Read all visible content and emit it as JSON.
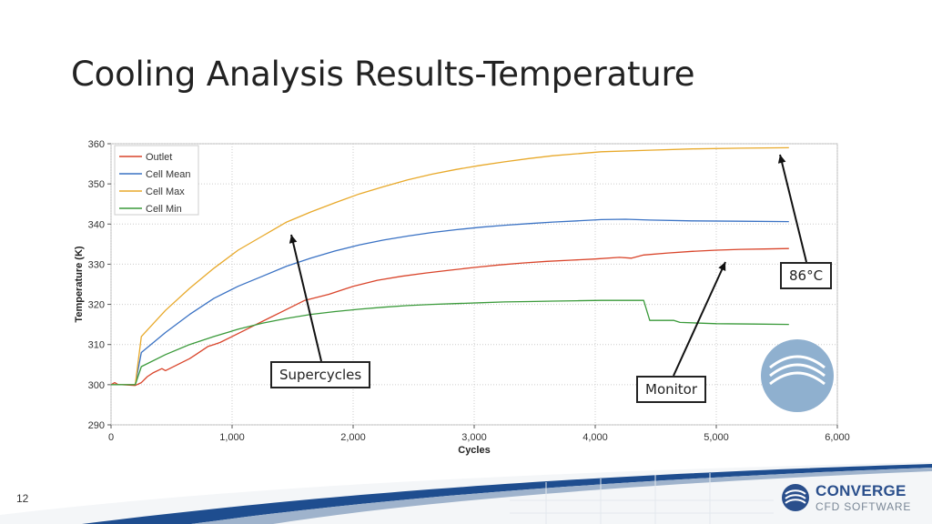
{
  "slide": {
    "title": "Cooling Analysis Results-Temperature",
    "page_number": "12"
  },
  "callouts": {
    "supercycles": "Supercycles",
    "monitor": "Monitor",
    "max_temp": "86°C"
  },
  "logo": {
    "word": "CONVERGE",
    "sub": "CFD SOFTWARE"
  },
  "colors": {
    "outlet": "#d9442a",
    "cell_mean": "#3a72c4",
    "cell_max": "#e8a92a",
    "cell_min": "#3a9a3a",
    "brand": "#2a4f8c"
  },
  "chart_data": {
    "type": "line",
    "xlabel": "Cycles",
    "ylabel": "Temperature (K)",
    "xlim": [
      0,
      6000
    ],
    "ylim": [
      290,
      360
    ],
    "x_ticks": [
      0,
      1000,
      2000,
      3000,
      4000,
      5000,
      6000
    ],
    "x_tick_labels": [
      "0",
      "1,000",
      "2,000",
      "3,000",
      "4,000",
      "5,000",
      "6,000"
    ],
    "y_ticks": [
      290,
      300,
      310,
      320,
      330,
      340,
      350,
      360
    ],
    "y_tick_labels": [
      "290",
      "300",
      "310",
      "320",
      "330",
      "340",
      "350",
      "360"
    ],
    "grid": "dotted",
    "legend_position": "top-left",
    "series": [
      {
        "name": "Outlet",
        "color_key": "outlet",
        "x": [
          0,
          30,
          60,
          90,
          200,
          250,
          300,
          350,
          420,
          450,
          550,
          650,
          700,
          800,
          850,
          900,
          1000,
          1100,
          1200,
          1300,
          1400,
          1500,
          1600,
          1800,
          2000,
          2200,
          2400,
          2600,
          2800,
          3000,
          3200,
          3400,
          3600,
          3800,
          4000,
          4200,
          4300,
          4400,
          4600,
          4800,
          5000,
          5200,
          5400,
          5600
        ],
        "y": [
          300,
          300.5,
          300,
          300,
          299.8,
          300.5,
          302,
          303,
          304,
          303.5,
          305,
          306.5,
          307.5,
          309.5,
          310,
          310.5,
          312,
          313.5,
          315,
          316.5,
          318,
          319.5,
          321,
          322.5,
          324.5,
          326,
          327,
          327.8,
          328.5,
          329.2,
          329.8,
          330.3,
          330.7,
          331,
          331.3,
          331.7,
          331.5,
          332.3,
          332.8,
          333.2,
          333.5,
          333.7,
          333.8,
          333.9
        ]
      },
      {
        "name": "Cell Mean",
        "color_key": "cell_mean",
        "x": [
          0,
          200,
          250,
          450,
          650,
          850,
          1050,
          1250,
          1450,
          1650,
          1850,
          2050,
          2250,
          2450,
          2650,
          2850,
          3050,
          3250,
          3450,
          3650,
          3850,
          4050,
          4250,
          4450,
          4800,
          5200,
          5600
        ],
        "y": [
          300,
          300,
          308,
          313,
          317.5,
          321.5,
          324.5,
          327,
          329.5,
          331.5,
          333.3,
          334.8,
          336,
          337,
          337.9,
          338.6,
          339.2,
          339.7,
          340.1,
          340.5,
          340.8,
          341.1,
          341.2,
          341,
          340.8,
          340.7,
          340.6
        ]
      },
      {
        "name": "Cell Max",
        "color_key": "cell_max",
        "x": [
          0,
          200,
          250,
          450,
          650,
          850,
          1050,
          1250,
          1450,
          1650,
          1850,
          2050,
          2250,
          2450,
          2650,
          2850,
          3050,
          3250,
          3450,
          3650,
          3850,
          4050,
          4450,
          4800,
          5200,
          5600
        ],
        "y": [
          300,
          300,
          312,
          318.5,
          324,
          329,
          333.5,
          337,
          340.5,
          343,
          345.3,
          347.5,
          349.3,
          351,
          352.4,
          353.6,
          354.6,
          355.5,
          356.3,
          357,
          357.5,
          358,
          358.4,
          358.7,
          358.9,
          359
        ]
      },
      {
        "name": "Cell Min",
        "color_key": "cell_min",
        "x": [
          0,
          200,
          250,
          450,
          650,
          850,
          1050,
          1250,
          1450,
          1650,
          1850,
          2050,
          2250,
          2450,
          2650,
          2850,
          3050,
          3250,
          3450,
          3650,
          3850,
          4050,
          4250,
          4400,
          4450,
          4650,
          4700,
          5000,
          5300,
          5600
        ],
        "y": [
          300,
          300,
          304.5,
          307.5,
          310,
          312,
          313.8,
          315.3,
          316.5,
          317.5,
          318.2,
          318.8,
          319.3,
          319.7,
          320,
          320.2,
          320.4,
          320.6,
          320.7,
          320.8,
          320.9,
          321,
          321,
          321,
          316,
          316,
          315.5,
          315.2,
          315.1,
          315
        ]
      }
    ]
  }
}
